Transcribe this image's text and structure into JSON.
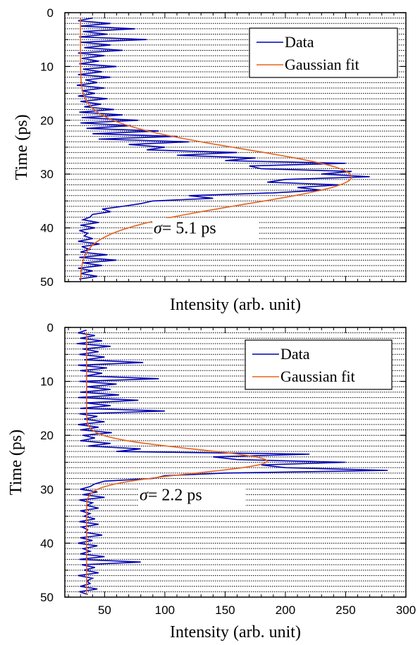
{
  "chart_data": [
    {
      "type": "line",
      "orientation": "horizontal-intensity-vertical-time",
      "xlabel": "Intensity (arb. unit)",
      "ylabel": "Time (ps)",
      "ylim": [
        0,
        50
      ],
      "y_inverted": true,
      "yticks": [
        0,
        10,
        20,
        30,
        40,
        50
      ],
      "xlim": [
        17,
        300
      ],
      "xticks": [],
      "grid": "horizontal-dotted-every-1ps",
      "legend_placement": "top-right",
      "annotation": {
        "sigma_symbol": "σ",
        "text": "= 5.1 ps",
        "time": 40
      },
      "colors": {
        "data": "#0000b4",
        "fit": "#e8641e"
      },
      "series": [
        {
          "name": "Data",
          "time": [
            1,
            1.5,
            2,
            2.5,
            3,
            3.5,
            4,
            4.5,
            5,
            5.5,
            6,
            6.5,
            7,
            7.5,
            8,
            8.5,
            9,
            9.5,
            10,
            10.5,
            11,
            11.5,
            12,
            12.5,
            13,
            13.5,
            14,
            14.5,
            15,
            15.5,
            16,
            16.5,
            17,
            17.5,
            18,
            18.5,
            19,
            19.5,
            20,
            20.5,
            21,
            21.5,
            22,
            22.5,
            23,
            23.5,
            24,
            24.5,
            25,
            25.5,
            26,
            26.5,
            27,
            27.5,
            28,
            28.5,
            29,
            29.5,
            30,
            30.5,
            31,
            31.5,
            32,
            32.5,
            33,
            33.5,
            34,
            34.5,
            35,
            35.5,
            36,
            36.5,
            37,
            37.5,
            38,
            38.5,
            39,
            39.5,
            40,
            40.5,
            41,
            41.5,
            42,
            42.5,
            43,
            43.5,
            44,
            44.5,
            45,
            45.5,
            46,
            46.5,
            47,
            47.5,
            48,
            48.5,
            49,
            49.5
          ],
          "intensity": [
            40,
            28,
            55,
            30,
            75,
            32,
            52,
            29,
            85,
            30,
            55,
            33,
            65,
            28,
            50,
            31,
            45,
            29,
            60,
            32,
            48,
            28,
            55,
            34,
            44,
            27,
            50,
            31,
            42,
            28,
            52,
            30,
            47,
            33,
            58,
            29,
            65,
            31,
            78,
            30,
            72,
            35,
            95,
            40,
            110,
            45,
            120,
            70,
            100,
            85,
            160,
            110,
            175,
            150,
            250,
            170,
            180,
            255,
            230,
            270,
            200,
            185,
            245,
            210,
            230,
            190,
            120,
            140,
            90,
            80,
            65,
            48,
            55,
            40,
            38,
            32,
            45,
            30,
            42,
            29,
            36,
            33,
            40,
            28,
            46,
            31,
            38,
            30,
            52,
            29,
            60,
            32,
            48,
            28,
            40,
            30,
            44,
            29
          ],
          "fit": {
            "amplitude": 225,
            "baseline": 30,
            "center": 30.5,
            "sigma": 5.1
          }
        }
      ]
    },
    {
      "type": "line",
      "orientation": "horizontal-intensity-vertical-time",
      "xlabel": "Intensity (arb. unit)",
      "ylabel": "Time (ps)",
      "ylim": [
        0,
        50
      ],
      "y_inverted": true,
      "yticks": [
        0,
        10,
        20,
        30,
        40,
        50
      ],
      "xlim": [
        17,
        300
      ],
      "xticks": [
        50,
        100,
        150,
        200,
        250,
        300
      ],
      "grid": "horizontal-dotted-every-1ps",
      "legend_placement": "top-right",
      "annotation": {
        "sigma_symbol": "σ",
        "text": "= 2.2 ps",
        "time": 31
      },
      "colors": {
        "data": "#0000b4",
        "fit": "#e8641e"
      },
      "series": [
        {
          "name": "Data",
          "time": [
            0.5,
            1,
            1.5,
            2,
            2.5,
            3,
            3.5,
            4,
            4.5,
            5,
            5.5,
            6,
            6.5,
            7,
            7.5,
            8,
            8.5,
            9,
            9.5,
            10,
            10.5,
            11,
            11.5,
            12,
            12.5,
            13,
            13.5,
            14,
            14.5,
            15,
            15.5,
            16,
            16.5,
            17,
            17.5,
            18,
            18.5,
            19,
            19.5,
            20,
            20.5,
            21,
            21.5,
            22,
            22.5,
            23,
            23.5,
            24,
            24.5,
            25,
            25.5,
            26,
            26.5,
            27,
            27.5,
            28,
            28.5,
            29,
            29.5,
            30,
            30.5,
            31,
            31.5,
            32,
            32.5,
            33,
            33.5,
            34,
            34.5,
            35,
            35.5,
            36,
            36.5,
            37,
            37.5,
            38,
            38.5,
            39,
            39.5,
            40,
            40.5,
            41,
            41.5,
            42,
            42.5,
            43,
            43.5,
            44,
            44.5,
            45,
            45.5,
            46,
            46.5,
            47,
            47.5,
            48,
            48.5,
            49,
            49.5
          ],
          "intensity": [
            35,
            28,
            42,
            30,
            48,
            27,
            55,
            32,
            45,
            29,
            50,
            33,
            82,
            28,
            52,
            30,
            48,
            34,
            95,
            29,
            60,
            35,
            55,
            30,
            62,
            28,
            78,
            34,
            55,
            30,
            100,
            29,
            44,
            33,
            50,
            28,
            45,
            30,
            56,
            32,
            42,
            30,
            55,
            36,
            80,
            60,
            220,
            140,
            160,
            250,
            180,
            200,
            285,
            150,
            100,
            90,
            50,
            42,
            38,
            30,
            44,
            32,
            50,
            29,
            40,
            35,
            45,
            30,
            38,
            33,
            42,
            29,
            45,
            31,
            36,
            34,
            48,
            30,
            40,
            28,
            44,
            32,
            38,
            30,
            50,
            29,
            80,
            31,
            42,
            33,
            45,
            28,
            40,
            35,
            38,
            30,
            44,
            29,
            36
          ],
          "fit": {
            "amplitude": 150,
            "baseline": 35,
            "center": 24.8,
            "sigma": 2.2
          }
        }
      ]
    }
  ],
  "legend": {
    "data_label": "Data",
    "fit_label": "Gaussian fit"
  }
}
